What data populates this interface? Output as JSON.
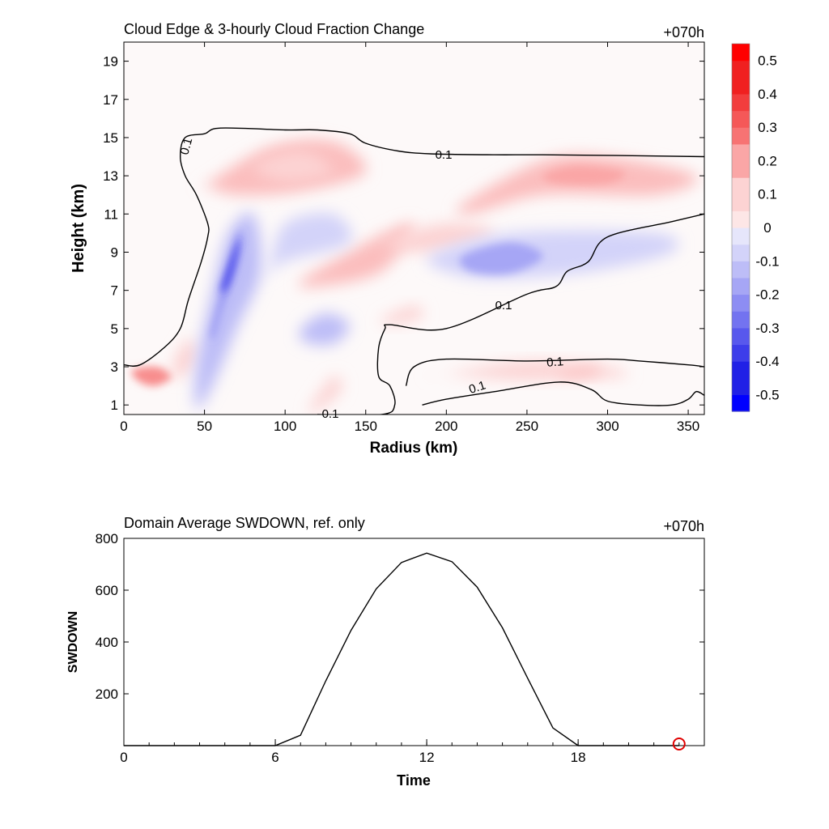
{
  "chart_data": [
    {
      "type": "heatmap",
      "title": "Cloud Edge & 3-hourly Cloud Fraction Change",
      "time_label": "+070h",
      "xlabel": "Radius (km)",
      "ylabel": "Height (km)",
      "xlim": [
        0,
        360
      ],
      "ylim": [
        0.5,
        20
      ],
      "xticks": [
        "0",
        "50",
        "100",
        "150",
        "200",
        "250",
        "300",
        "350"
      ],
      "yticks": [
        "1",
        "3",
        "5",
        "7",
        "9",
        "11",
        "13",
        "15",
        "17",
        "19"
      ],
      "contour_level": "0.1",
      "contour_labels": [
        "0.1",
        "0.1",
        "0.1",
        "0.1",
        "0.1",
        "0.1"
      ],
      "colorbar": {
        "labels": [
          "0.5",
          "0.4",
          "0.3",
          "0.2",
          "0.1",
          "0",
          "-0.1",
          "-0.2",
          "-0.3",
          "-0.4",
          "-0.5"
        ],
        "range": [
          -0.55,
          0.55
        ],
        "step": 0.05,
        "colors_positive": [
          "#fdf7f7",
          "#fde6e6",
          "#fcd3d3",
          "#fbbdbd",
          "#faa6a6",
          "#f88d8d",
          "#f77373",
          "#f55858",
          "#f23d3d",
          "#f02020",
          "#ff0000"
        ],
        "colors_negative": [
          "#f7f7fd",
          "#e6e6fb",
          "#d3d3f9",
          "#bdbdf7",
          "#a6a6f5",
          "#8d8df3",
          "#7373f0",
          "#5858ed",
          "#3d3dea",
          "#2020e6",
          "#0000ff"
        ]
      },
      "anomalies": [
        {
          "sign": "pos",
          "x": [
            10,
            20,
            30,
            20,
            5
          ],
          "y": [
            2.2,
            2.0,
            2.5,
            3.0,
            2.8
          ],
          "level": 0.25
        },
        {
          "sign": "pos",
          "x": [
            50,
            90,
            130,
            150,
            110,
            70,
            50
          ],
          "y": [
            12.5,
            14.5,
            14.8,
            13.2,
            12.2,
            12.0,
            12.5
          ],
          "level": 0.15
        },
        {
          "sign": "pos",
          "x": [
            80,
            110,
            130,
            100
          ],
          "y": [
            13.5,
            14.3,
            13.2,
            12.7
          ],
          "level": 0.12
        },
        {
          "sign": "pos",
          "x": [
            210,
            260,
            300,
            355,
            330,
            260,
            215
          ],
          "y": [
            11.5,
            13.8,
            14.0,
            13.0,
            12.0,
            12.0,
            11.0
          ],
          "level": 0.15
        },
        {
          "sign": "pos",
          "x": [
            260,
            280,
            310,
            300,
            270
          ],
          "y": [
            13.0,
            13.5,
            13.2,
            12.6,
            12.6
          ],
          "level": 0.2
        },
        {
          "sign": "pos",
          "x": [
            110,
            150,
            180,
            160,
            120
          ],
          "y": [
            7.5,
            9.5,
            10.5,
            8.0,
            7.2
          ],
          "level": 0.15
        },
        {
          "sign": "pos",
          "x": [
            160,
            200,
            230,
            190
          ],
          "y": [
            9.5,
            10.5,
            10.0,
            9.0
          ],
          "level": 0.12
        },
        {
          "sign": "pos",
          "x": [
            160,
            180,
            185,
            165
          ],
          "y": [
            5.5,
            6.2,
            5.6,
            5.2
          ],
          "level": 0.12
        },
        {
          "sign": "pos",
          "x": [
            115,
            130,
            135,
            120
          ],
          "y": [
            0.8,
            2.5,
            1.8,
            0.7
          ],
          "level": 0.12
        },
        {
          "sign": "pos",
          "x": [
            190,
            250,
            300,
            310,
            250,
            200
          ],
          "y": [
            2.5,
            3.3,
            3.0,
            2.5,
            2.3,
            2.6
          ],
          "level": 0.1
        },
        {
          "sign": "pos",
          "x": [
            270,
            290,
            295,
            275
          ],
          "y": [
            2.6,
            3.0,
            2.7,
            2.4
          ],
          "level": 0.15
        },
        {
          "sign": "pos",
          "x": [
            30,
            40,
            45,
            35
          ],
          "y": [
            3.0,
            4.5,
            3.5,
            2.4
          ],
          "level": 0.12
        },
        {
          "sign": "neg",
          "x": [
            45,
            55,
            65,
            80,
            85,
            70,
            55,
            45
          ],
          "y": [
            3.0,
            7.0,
            10.0,
            11.0,
            8.0,
            5.0,
            2.0,
            0.8
          ],
          "level": 0.15
        },
        {
          "sign": "neg",
          "x": [
            55,
            65,
            72,
            70,
            60,
            55
          ],
          "y": [
            5.0,
            8.0,
            10.2,
            8.5,
            6.0,
            4.5
          ],
          "level": 0.3
        },
        {
          "sign": "neg",
          "x": [
            60,
            68,
            72,
            65
          ],
          "y": [
            7.0,
            9.0,
            9.6,
            7.4
          ],
          "level": 0.4
        },
        {
          "sign": "neg",
          "x": [
            190,
            240,
            330,
            340,
            290,
            230,
            200
          ],
          "y": [
            8.8,
            10.0,
            10.0,
            9.0,
            8.0,
            7.6,
            8.0
          ],
          "level": 0.12
        },
        {
          "sign": "neg",
          "x": [
            210,
            240,
            260,
            240,
            215
          ],
          "y": [
            8.8,
            9.5,
            8.8,
            7.9,
            8.0
          ],
          "level": 0.2
        },
        {
          "sign": "neg",
          "x": [
            110,
            125,
            140,
            130,
            112
          ],
          "y": [
            5.0,
            5.8,
            5.2,
            4.2,
            4.3
          ],
          "level": 0.15
        },
        {
          "sign": "neg",
          "x": [
            90,
            100,
            130,
            140,
            100,
            85
          ],
          "y": [
            8.2,
            10.5,
            11.0,
            9.5,
            8.5,
            7.5
          ],
          "level": 0.08
        }
      ],
      "contours": [
        {
          "x": [
            0,
            10,
            25,
            35,
            40,
            48,
            52,
            52,
            45,
            38,
            35,
            38,
            50,
            60,
            100,
            120,
            140,
            150,
            170,
            190,
            230,
            260,
            320,
            360
          ],
          "y": [
            3.1,
            3.1,
            4.0,
            5.0,
            6.5,
            8.5,
            9.8,
            10.5,
            12.0,
            13.0,
            14.0,
            15.0,
            15.2,
            15.5,
            15.4,
            15.4,
            15.2,
            14.7,
            14.3,
            14.15,
            14.1,
            14.1,
            14.05,
            14.0
          ]
        },
        {
          "x": [
            120,
            160,
            168,
            165,
            158,
            158,
            162,
            165,
            200,
            250,
            268,
            275,
            288,
            300,
            340,
            360
          ],
          "y": [
            0.5,
            0.5,
            1.0,
            2.0,
            2.5,
            4.0,
            5.0,
            5.2,
            5.0,
            6.8,
            7.2,
            8.0,
            8.5,
            9.8,
            10.6,
            11.0
          ]
        },
        {
          "x": [
            175,
            180,
            200,
            250,
            300,
            320,
            350,
            360
          ],
          "y": [
            2.0,
            3.0,
            3.4,
            3.3,
            3.4,
            3.3,
            3.1,
            3.0
          ]
        },
        {
          "x": [
            185,
            200,
            230,
            270,
            290,
            300,
            320,
            340,
            350,
            355,
            360
          ],
          "y": [
            1.0,
            1.3,
            1.7,
            2.2,
            1.8,
            1.2,
            1.0,
            1.0,
            1.3,
            1.7,
            1.5
          ]
        }
      ]
    },
    {
      "type": "line",
      "title": "Domain Average SWDOWN, ref. only",
      "time_label": "+070h",
      "xlabel": "Time",
      "ylabel": "SWDOWN",
      "xlim": [
        0,
        23
      ],
      "ylim": [
        0,
        800
      ],
      "xticks": [
        "0",
        "6",
        "12",
        "18"
      ],
      "yticks": [
        "200",
        "400",
        "600",
        "800"
      ],
      "series": [
        {
          "x": [
            0,
            1,
            2,
            3,
            4,
            5,
            6,
            7,
            8,
            9,
            10,
            11,
            12,
            13,
            14,
            15,
            16,
            17,
            18,
            19,
            20,
            21,
            22
          ],
          "y": [
            0,
            0,
            0,
            0,
            0,
            0,
            0,
            40,
            250,
            445,
            605,
            707,
            743,
            710,
            612,
            455,
            260,
            68,
            0,
            0,
            0,
            0,
            0
          ]
        }
      ],
      "marker": {
        "x": 22,
        "y": 0,
        "color": "#e00000",
        "shape": "circle"
      }
    }
  ]
}
